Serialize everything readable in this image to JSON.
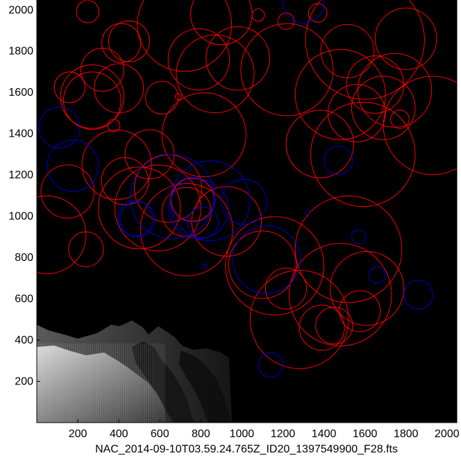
{
  "chart_data": {
    "type": "scatter",
    "title": "",
    "xlabel": "NAC_2014-09-10T03.59.24.765Z_ID20_1397549900_F28.fts",
    "ylabel": "",
    "xlim": [
      0,
      2048
    ],
    "ylim": [
      0,
      2048
    ],
    "x_ticks": [
      200,
      400,
      600,
      800,
      1000,
      1200,
      1400,
      1600,
      1800,
      2000
    ],
    "y_ticks": [
      200,
      400,
      600,
      800,
      1000,
      1200,
      1400,
      1600,
      1800,
      2000
    ],
    "grid": false,
    "background": "nucleus image",
    "colors": {
      "red": "#ff0000",
      "blue": "#0000cc",
      "background": "#000000"
    },
    "series": [
      {
        "color": "red",
        "circles": [
          [
            248,
            1992,
            55
          ],
          [
            450,
            1848,
            100
          ],
          [
            412,
            1840,
            95
          ],
          [
            720,
            1930,
            230
          ],
          [
            900,
            1980,
            150
          ],
          [
            1080,
            1975,
            30
          ],
          [
            1215,
            1945,
            40
          ],
          [
            1370,
            1985,
            45
          ],
          [
            1800,
            1860,
            150
          ],
          [
            1600,
            1855,
            290
          ],
          [
            1515,
            1800,
            130
          ],
          [
            1650,
            1638,
            140
          ],
          [
            1745,
            1610,
            180
          ],
          [
            1220,
            1710,
            225
          ],
          [
            980,
            1765,
            155
          ],
          [
            790,
            1760,
            150
          ],
          [
            870,
            1690,
            190
          ],
          [
            1480,
            1590,
            220
          ],
          [
            1560,
            1500,
            140
          ],
          [
            1690,
            1525,
            155
          ],
          [
            1930,
            1440,
            240
          ],
          [
            1770,
            1470,
            45
          ],
          [
            160,
            1625,
            75
          ],
          [
            270,
            1560,
            140
          ],
          [
            270,
            1580,
            155
          ],
          [
            320,
            1710,
            105
          ],
          [
            375,
            1440,
            30
          ],
          [
            610,
            1575,
            80
          ],
          [
            690,
            1580,
            15
          ],
          [
            400,
            1620,
            120
          ],
          [
            815,
            1395,
            205
          ],
          [
            1380,
            1350,
            165
          ],
          [
            1590,
            1300,
            255
          ],
          [
            550,
            1300,
            120
          ],
          [
            430,
            1170,
            115
          ],
          [
            390,
            1250,
            170
          ],
          [
            500,
            1040,
            200
          ],
          [
            590,
            1040,
            210
          ],
          [
            730,
            1020,
            120
          ],
          [
            760,
            1080,
            105
          ],
          [
            925,
            975,
            170
          ],
          [
            730,
            935,
            225
          ],
          [
            150,
            1120,
            130
          ],
          [
            50,
            910,
            190
          ],
          [
            240,
            840,
            85
          ],
          [
            640,
            1135,
            165
          ],
          [
            1100,
            765,
            165
          ],
          [
            1160,
            760,
            240
          ],
          [
            1280,
            500,
            240
          ],
          [
            1390,
            460,
            110
          ],
          [
            1480,
            620,
            250
          ],
          [
            1450,
            470,
            90
          ],
          [
            1575,
            540,
            100
          ],
          [
            1215,
            650,
            100
          ],
          [
            1610,
            650,
            180
          ],
          [
            1520,
            840,
            260
          ]
        ]
      },
      {
        "color": "blue",
        "circles": [
          [
            1300,
            2035,
            100
          ],
          [
            110,
            1430,
            100
          ],
          [
            175,
            1245,
            125
          ],
          [
            490,
            985,
            85
          ],
          [
            480,
            990,
            85
          ],
          [
            660,
            1095,
            205
          ],
          [
            760,
            1080,
            110
          ],
          [
            845,
            1075,
            195
          ],
          [
            1010,
            1070,
            110
          ],
          [
            810,
            970,
            75
          ],
          [
            1120,
            790,
            165
          ],
          [
            1470,
            1270,
            70
          ],
          [
            1570,
            900,
            35
          ],
          [
            1660,
            715,
            40
          ],
          [
            1860,
            620,
            70
          ],
          [
            1140,
            280,
            60
          ],
          [
            820,
            760,
            10
          ],
          [
            1320,
            1020,
            10
          ],
          [
            790,
            1035,
            145
          ]
        ]
      }
    ]
  }
}
